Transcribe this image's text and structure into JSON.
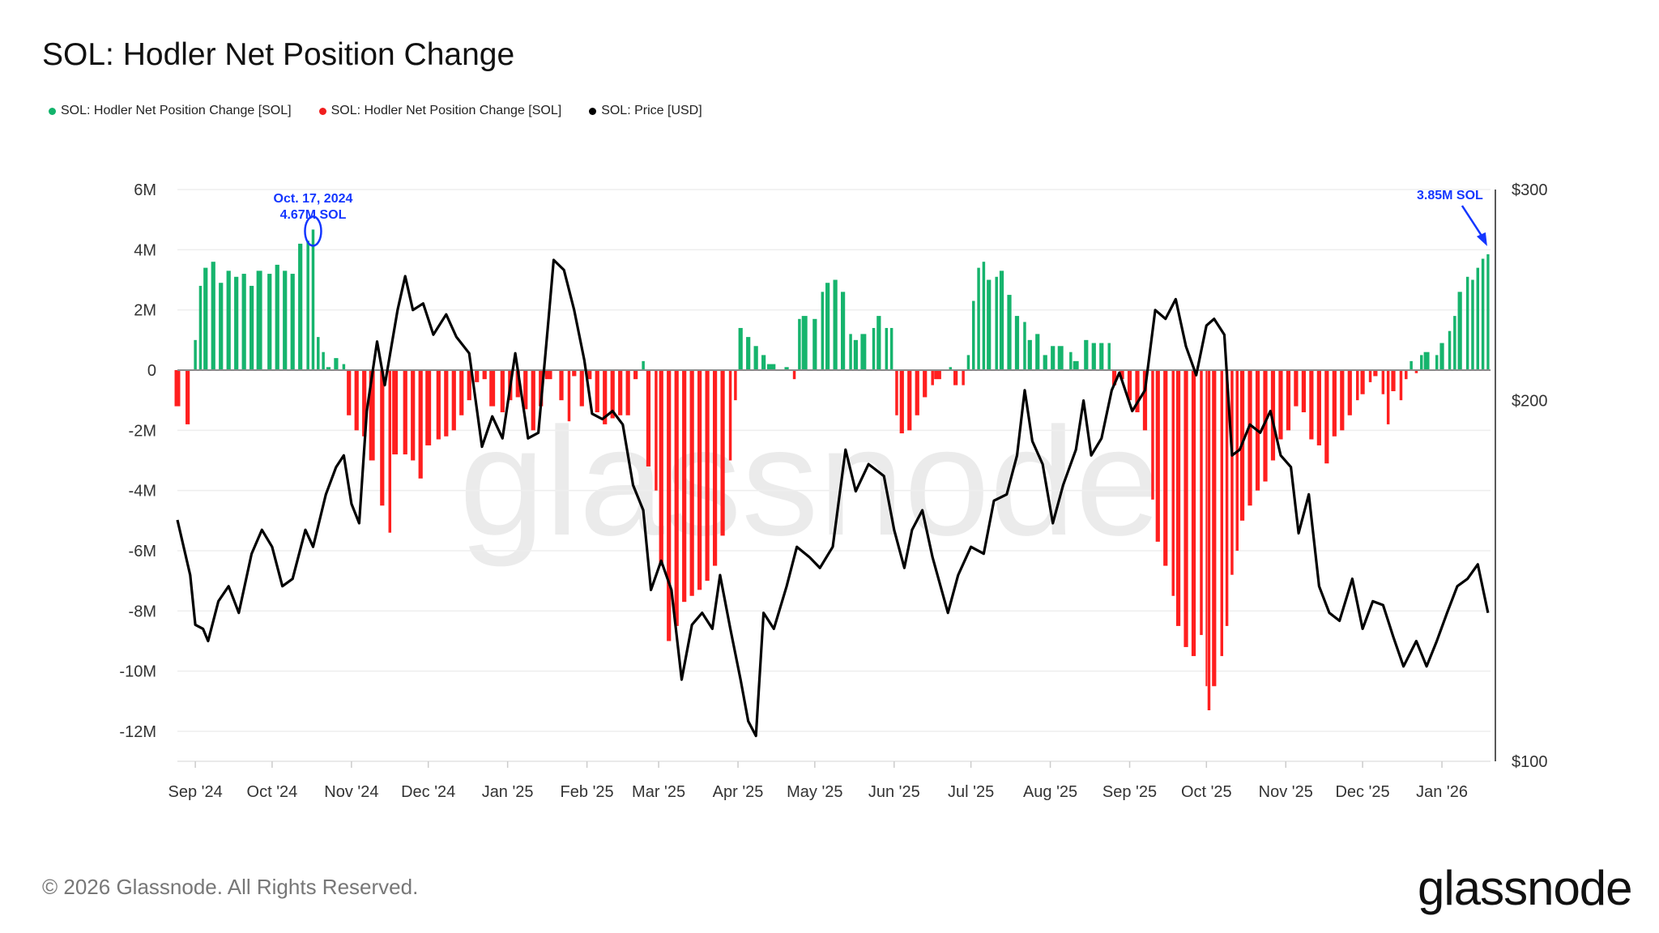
{
  "title": "SOL: Hodler Net Position Change",
  "legend": [
    {
      "label": "SOL: Hodler Net Position Change [SOL]",
      "color": "#12b36b"
    },
    {
      "label": "SOL: Hodler Net Position Change [SOL]",
      "color": "#f01e1e"
    },
    {
      "label": "SOL: Price [USD]",
      "color": "#000000"
    }
  ],
  "footer": "© 2026 Glassnode. All Rights Reserved.",
  "logo": "glassnode",
  "watermark": "glassnode",
  "chart_data": {
    "type": "bar+line",
    "title": "SOL: Hodler Net Position Change",
    "colors": {
      "positive": "#16b46d",
      "negative": "#ff1f1f",
      "price": "#000000",
      "annotation": "#1436ff"
    },
    "grid": true,
    "legend_position": "top-left",
    "x_range": [
      "2024-08-25",
      "2026-01-19"
    ],
    "x_ticks": [
      "Sep '24",
      "Oct '24",
      "Nov '24",
      "Dec '24",
      "Jan '25",
      "Feb '25",
      "Mar '25",
      "Apr '25",
      "May '25",
      "Jun '25",
      "Jul '25",
      "Aug '25",
      "Sep '25",
      "Oct '25",
      "Nov '25",
      "Dec '25",
      "Jan '26"
    ],
    "x_tick_dates": [
      "2024-09-01",
      "2024-10-01",
      "2024-11-01",
      "2024-12-01",
      "2025-01-01",
      "2025-02-01",
      "2025-03-01",
      "2025-04-01",
      "2025-05-01",
      "2025-06-01",
      "2025-07-01",
      "2025-08-01",
      "2025-09-01",
      "2025-10-01",
      "2025-11-01",
      "2025-12-01",
      "2026-01-01"
    ],
    "y_left": {
      "unit": "SOL",
      "range": [
        -12000000,
        6000000
      ],
      "ticks": [
        6,
        4,
        2,
        0,
        -2,
        -4,
        -6,
        -8,
        -10,
        -12
      ],
      "tick_labels": [
        "6M",
        "4M",
        "2M",
        "0",
        "-2M",
        "-4M",
        "-6M",
        "-8M",
        "-10M",
        "-12M"
      ]
    },
    "y_right": {
      "unit": "USD",
      "scale": "log",
      "range": [
        100,
        300
      ],
      "ticks": [
        300,
        200,
        100
      ],
      "tick_labels": [
        "$300",
        "$200",
        "$100"
      ]
    },
    "annotations": [
      {
        "date": "2024-10-17",
        "value_m": 4.67,
        "lines": [
          "Oct. 17, 2024",
          "4.67M SOL"
        ],
        "marker": "ellipse"
      },
      {
        "date": "2026-01-19",
        "value_m": 3.85,
        "lines": [
          "3.85M SOL"
        ],
        "marker": "arrow"
      }
    ],
    "net_position_millions": [
      [
        "2024-08-25",
        -1.2
      ],
      [
        "2024-08-29",
        -1.8
      ],
      [
        "2024-09-01",
        1.0
      ],
      [
        "2024-09-03",
        2.8
      ],
      [
        "2024-09-05",
        3.4
      ],
      [
        "2024-09-08",
        3.6
      ],
      [
        "2024-09-11",
        2.9
      ],
      [
        "2024-09-14",
        3.3
      ],
      [
        "2024-09-17",
        3.1
      ],
      [
        "2024-09-20",
        3.2
      ],
      [
        "2024-09-23",
        2.8
      ],
      [
        "2024-09-26",
        3.3
      ],
      [
        "2024-09-30",
        3.2
      ],
      [
        "2024-10-03",
        3.5
      ],
      [
        "2024-10-06",
        3.3
      ],
      [
        "2024-10-09",
        3.2
      ],
      [
        "2024-10-12",
        4.2
      ],
      [
        "2024-10-15",
        4.3
      ],
      [
        "2024-10-17",
        4.67
      ],
      [
        "2024-10-19",
        1.1
      ],
      [
        "2024-10-21",
        0.6
      ],
      [
        "2024-10-23",
        0.1
      ],
      [
        "2024-10-26",
        0.4
      ],
      [
        "2024-10-29",
        0.2
      ],
      [
        "2024-10-31",
        -1.5
      ],
      [
        "2024-11-03",
        -2.0
      ],
      [
        "2024-11-06",
        -2.2
      ],
      [
        "2024-11-09",
        -3.0
      ],
      [
        "2024-11-13",
        -4.5
      ],
      [
        "2024-11-16",
        -5.4
      ],
      [
        "2024-11-18",
        -2.8
      ],
      [
        "2024-11-22",
        -2.8
      ],
      [
        "2024-11-25",
        -3.0
      ],
      [
        "2024-11-28",
        -3.6
      ],
      [
        "2024-12-01",
        -2.5
      ],
      [
        "2024-12-05",
        -2.3
      ],
      [
        "2024-12-08",
        -2.2
      ],
      [
        "2024-12-11",
        -2.0
      ],
      [
        "2024-12-14",
        -1.5
      ],
      [
        "2024-12-17",
        -1.0
      ],
      [
        "2024-12-20",
        -0.4
      ],
      [
        "2024-12-23",
        -0.3
      ],
      [
        "2024-12-26",
        -1.2
      ],
      [
        "2024-12-30",
        -1.4
      ],
      [
        "2025-01-02",
        -1.0
      ],
      [
        "2025-01-05",
        -0.9
      ],
      [
        "2025-01-08",
        -1.3
      ],
      [
        "2025-01-11",
        -2.0
      ],
      [
        "2025-01-14",
        -1.2
      ],
      [
        "2025-01-17",
        -0.3
      ],
      [
        "2025-01-22",
        -1.0
      ],
      [
        "2025-01-25",
        -1.7
      ],
      [
        "2025-01-27",
        -0.2
      ],
      [
        "2025-01-30",
        -1.2
      ],
      [
        "2025-02-02",
        -0.3
      ],
      [
        "2025-02-05",
        -1.4
      ],
      [
        "2025-02-08",
        -1.8
      ],
      [
        "2025-02-11",
        -1.6
      ],
      [
        "2025-02-14",
        -1.5
      ],
      [
        "2025-02-17",
        -1.5
      ],
      [
        "2025-02-20",
        -0.3
      ],
      [
        "2025-02-23",
        0.3
      ],
      [
        "2025-02-25",
        -3.2
      ],
      [
        "2025-02-28",
        -4.0
      ],
      [
        "2025-03-02",
        -6.5
      ],
      [
        "2025-03-05",
        -9.0
      ],
      [
        "2025-03-08",
        -8.5
      ],
      [
        "2025-03-11",
        -7.7
      ],
      [
        "2025-03-14",
        -7.5
      ],
      [
        "2025-03-17",
        -7.3
      ],
      [
        "2025-03-20",
        -7.0
      ],
      [
        "2025-03-23",
        -6.5
      ],
      [
        "2025-03-26",
        -5.5
      ],
      [
        "2025-03-29",
        -3.0
      ],
      [
        "2025-03-31",
        -1.0
      ],
      [
        "2025-04-02",
        1.4
      ],
      [
        "2025-04-05",
        1.1
      ],
      [
        "2025-04-08",
        0.8
      ],
      [
        "2025-04-11",
        0.5
      ],
      [
        "2025-04-14",
        0.2
      ],
      [
        "2025-04-20",
        0.1
      ],
      [
        "2025-04-23",
        -0.3
      ],
      [
        "2025-04-25",
        1.7
      ],
      [
        "2025-04-27",
        1.8
      ],
      [
        "2025-05-01",
        1.7
      ],
      [
        "2025-05-04",
        2.6
      ],
      [
        "2025-05-06",
        2.9
      ],
      [
        "2025-05-09",
        3.0
      ],
      [
        "2025-05-12",
        2.6
      ],
      [
        "2025-05-15",
        1.2
      ],
      [
        "2025-05-17",
        1.0
      ],
      [
        "2025-05-20",
        1.2
      ],
      [
        "2025-05-24",
        1.4
      ],
      [
        "2025-05-26",
        1.8
      ],
      [
        "2025-05-29",
        1.4
      ],
      [
        "2025-05-31",
        1.4
      ],
      [
        "2025-06-02",
        -1.5
      ],
      [
        "2025-06-04",
        -2.1
      ],
      [
        "2025-06-07",
        -2.0
      ],
      [
        "2025-06-10",
        -1.5
      ],
      [
        "2025-06-13",
        -0.9
      ],
      [
        "2025-06-16",
        -0.5
      ],
      [
        "2025-06-18",
        -0.3
      ],
      [
        "2025-06-23",
        0.1
      ],
      [
        "2025-06-25",
        -0.5
      ],
      [
        "2025-06-28",
        -0.5
      ],
      [
        "2025-06-30",
        0.5
      ],
      [
        "2025-07-02",
        2.3
      ],
      [
        "2025-07-04",
        3.4
      ],
      [
        "2025-07-06",
        3.6
      ],
      [
        "2025-07-08",
        3.0
      ],
      [
        "2025-07-11",
        3.1
      ],
      [
        "2025-07-13",
        3.3
      ],
      [
        "2025-07-16",
        2.5
      ],
      [
        "2025-07-19",
        1.8
      ],
      [
        "2025-07-22",
        1.6
      ],
      [
        "2025-07-24",
        1.0
      ],
      [
        "2025-07-27",
        1.2
      ],
      [
        "2025-07-30",
        0.5
      ],
      [
        "2025-08-02",
        0.8
      ],
      [
        "2025-08-05",
        0.8
      ],
      [
        "2025-08-09",
        0.6
      ],
      [
        "2025-08-11",
        0.3
      ],
      [
        "2025-08-15",
        1.0
      ],
      [
        "2025-08-18",
        0.9
      ],
      [
        "2025-08-21",
        0.9
      ],
      [
        "2025-08-24",
        0.9
      ],
      [
        "2025-08-26",
        -0.5
      ],
      [
        "2025-08-29",
        -0.3
      ],
      [
        "2025-09-01",
        -1.0
      ],
      [
        "2025-09-04",
        -1.4
      ],
      [
        "2025-09-07",
        -2.0
      ],
      [
        "2025-09-10",
        -4.3
      ],
      [
        "2025-09-12",
        -5.7
      ],
      [
        "2025-09-15",
        -6.5
      ],
      [
        "2025-09-18",
        -7.5
      ],
      [
        "2025-09-20",
        -8.5
      ],
      [
        "2025-09-23",
        -9.2
      ],
      [
        "2025-09-26",
        -9.5
      ],
      [
        "2025-09-29",
        -8.8
      ],
      [
        "2025-10-01",
        -10.5
      ],
      [
        "2025-10-02",
        -11.3
      ],
      [
        "2025-10-04",
        -10.5
      ],
      [
        "2025-10-07",
        -9.5
      ],
      [
        "2025-10-09",
        -8.5
      ],
      [
        "2025-10-11",
        -6.8
      ],
      [
        "2025-10-13",
        -6.0
      ],
      [
        "2025-10-15",
        -5.0
      ],
      [
        "2025-10-18",
        -4.5
      ],
      [
        "2025-10-21",
        -4.0
      ],
      [
        "2025-10-24",
        -3.7
      ],
      [
        "2025-10-27",
        -3.0
      ],
      [
        "2025-10-30",
        -2.3
      ],
      [
        "2025-11-02",
        -2.0
      ],
      [
        "2025-11-05",
        -1.2
      ],
      [
        "2025-11-08",
        -1.4
      ],
      [
        "2025-11-11",
        -2.3
      ],
      [
        "2025-11-14",
        -2.5
      ],
      [
        "2025-11-17",
        -3.1
      ],
      [
        "2025-11-20",
        -2.2
      ],
      [
        "2025-11-23",
        -2.0
      ],
      [
        "2025-11-26",
        -1.5
      ],
      [
        "2025-11-29",
        -1.0
      ],
      [
        "2025-12-01",
        -0.8
      ],
      [
        "2025-12-04",
        -0.4
      ],
      [
        "2025-12-06",
        -0.2
      ],
      [
        "2025-12-09",
        -0.8
      ],
      [
        "2025-12-11",
        -1.8
      ],
      [
        "2025-12-13",
        -0.7
      ],
      [
        "2025-12-16",
        -1.0
      ],
      [
        "2025-12-18",
        -0.3
      ],
      [
        "2025-12-20",
        0.3
      ],
      [
        "2025-12-22",
        -0.1
      ],
      [
        "2025-12-24",
        0.5
      ],
      [
        "2025-12-26",
        0.6
      ],
      [
        "2025-12-30",
        0.5
      ],
      [
        "2026-01-01",
        0.9
      ],
      [
        "2026-01-04",
        1.3
      ],
      [
        "2026-01-06",
        1.8
      ],
      [
        "2026-01-08",
        2.6
      ],
      [
        "2026-01-11",
        3.1
      ],
      [
        "2026-01-13",
        3.0
      ],
      [
        "2026-01-15",
        3.4
      ],
      [
        "2026-01-17",
        3.7
      ],
      [
        "2026-01-19",
        3.85
      ]
    ],
    "price_usd": [
      [
        "2024-08-25",
        159
      ],
      [
        "2024-08-30",
        143
      ],
      [
        "2024-09-01",
        130
      ],
      [
        "2024-09-04",
        129
      ],
      [
        "2024-09-06",
        126
      ],
      [
        "2024-09-10",
        136
      ],
      [
        "2024-09-14",
        140
      ],
      [
        "2024-09-18",
        133
      ],
      [
        "2024-09-23",
        149
      ],
      [
        "2024-09-27",
        156
      ],
      [
        "2024-10-01",
        151
      ],
      [
        "2024-10-05",
        140
      ],
      [
        "2024-10-09",
        142
      ],
      [
        "2024-10-14",
        156
      ],
      [
        "2024-10-17",
        151
      ],
      [
        "2024-10-22",
        167
      ],
      [
        "2024-10-26",
        176
      ],
      [
        "2024-10-29",
        180
      ],
      [
        "2024-11-01",
        164
      ],
      [
        "2024-11-04",
        158
      ],
      [
        "2024-11-07",
        196
      ],
      [
        "2024-11-11",
        224
      ],
      [
        "2024-11-14",
        206
      ],
      [
        "2024-11-19",
        238
      ],
      [
        "2024-11-22",
        254
      ],
      [
        "2024-11-25",
        238
      ],
      [
        "2024-11-29",
        241
      ],
      [
        "2024-12-03",
        227
      ],
      [
        "2024-12-08",
        236
      ],
      [
        "2024-12-12",
        226
      ],
      [
        "2024-12-17",
        219
      ],
      [
        "2024-12-22",
        183
      ],
      [
        "2024-12-26",
        194
      ],
      [
        "2024-12-30",
        186
      ],
      [
        "2025-01-04",
        219
      ],
      [
        "2025-01-09",
        186
      ],
      [
        "2025-01-13",
        188
      ],
      [
        "2025-01-17",
        234
      ],
      [
        "2025-01-19",
        262
      ],
      [
        "2025-01-23",
        257
      ],
      [
        "2025-01-27",
        238
      ],
      [
        "2025-01-31",
        216
      ],
      [
        "2025-02-03",
        195
      ],
      [
        "2025-02-07",
        193
      ],
      [
        "2025-02-11",
        196
      ],
      [
        "2025-02-15",
        191
      ],
      [
        "2025-02-19",
        170
      ],
      [
        "2025-02-23",
        162
      ],
      [
        "2025-02-26",
        139
      ],
      [
        "2025-03-02",
        147
      ],
      [
        "2025-03-06",
        139
      ],
      [
        "2025-03-10",
        117
      ],
      [
        "2025-03-14",
        130
      ],
      [
        "2025-03-18",
        133
      ],
      [
        "2025-03-22",
        129
      ],
      [
        "2025-03-25",
        143
      ],
      [
        "2025-03-29",
        129
      ],
      [
        "2025-04-02",
        117
      ],
      [
        "2025-04-05",
        108
      ],
      [
        "2025-04-08",
        105
      ],
      [
        "2025-04-11",
        133
      ],
      [
        "2025-04-15",
        129
      ],
      [
        "2025-04-20",
        140
      ],
      [
        "2025-04-24",
        151
      ],
      [
        "2025-04-29",
        148
      ],
      [
        "2025-05-03",
        145
      ],
      [
        "2025-05-08",
        151
      ],
      [
        "2025-05-13",
        182
      ],
      [
        "2025-05-17",
        168
      ],
      [
        "2025-05-22",
        177
      ],
      [
        "2025-05-28",
        173
      ],
      [
        "2025-06-01",
        156
      ],
      [
        "2025-06-05",
        145
      ],
      [
        "2025-06-08",
        156
      ],
      [
        "2025-06-12",
        162
      ],
      [
        "2025-06-16",
        148
      ],
      [
        "2025-06-22",
        133
      ],
      [
        "2025-06-26",
        143
      ],
      [
        "2025-07-01",
        151
      ],
      [
        "2025-07-06",
        149
      ],
      [
        "2025-07-10",
        165
      ],
      [
        "2025-07-15",
        167
      ],
      [
        "2025-07-19",
        180
      ],
      [
        "2025-07-22",
        204
      ],
      [
        "2025-07-25",
        185
      ],
      [
        "2025-07-29",
        177
      ],
      [
        "2025-08-02",
        158
      ],
      [
        "2025-08-06",
        170
      ],
      [
        "2025-08-11",
        182
      ],
      [
        "2025-08-14",
        200
      ],
      [
        "2025-08-17",
        180
      ],
      [
        "2025-08-21",
        186
      ],
      [
        "2025-08-25",
        204
      ],
      [
        "2025-08-28",
        211
      ],
      [
        "2025-09-02",
        196
      ],
      [
        "2025-09-07",
        204
      ],
      [
        "2025-09-11",
        238
      ],
      [
        "2025-09-15",
        234
      ],
      [
        "2025-09-19",
        243
      ],
      [
        "2025-09-23",
        222
      ],
      [
        "2025-09-27",
        210
      ],
      [
        "2025-10-01",
        231
      ],
      [
        "2025-10-04",
        234
      ],
      [
        "2025-10-08",
        227
      ],
      [
        "2025-10-11",
        180
      ],
      [
        "2025-10-14",
        182
      ],
      [
        "2025-10-18",
        191
      ],
      [
        "2025-10-22",
        188
      ],
      [
        "2025-10-26",
        196
      ],
      [
        "2025-10-30",
        180
      ],
      [
        "2025-11-03",
        176
      ],
      [
        "2025-11-06",
        155
      ],
      [
        "2025-11-10",
        167
      ],
      [
        "2025-11-14",
        140
      ],
      [
        "2025-11-18",
        133
      ],
      [
        "2025-11-22",
        131
      ],
      [
        "2025-11-27",
        142
      ],
      [
        "2025-12-01",
        129
      ],
      [
        "2025-12-05",
        136
      ],
      [
        "2025-12-09",
        135
      ],
      [
        "2025-12-13",
        127
      ],
      [
        "2025-12-17",
        120
      ],
      [
        "2025-12-22",
        126
      ],
      [
        "2025-12-26",
        120
      ],
      [
        "2025-12-30",
        126
      ],
      [
        "2026-01-03",
        133
      ],
      [
        "2026-01-07",
        140
      ],
      [
        "2026-01-11",
        142
      ],
      [
        "2026-01-15",
        146
      ],
      [
        "2026-01-19",
        133
      ]
    ]
  }
}
